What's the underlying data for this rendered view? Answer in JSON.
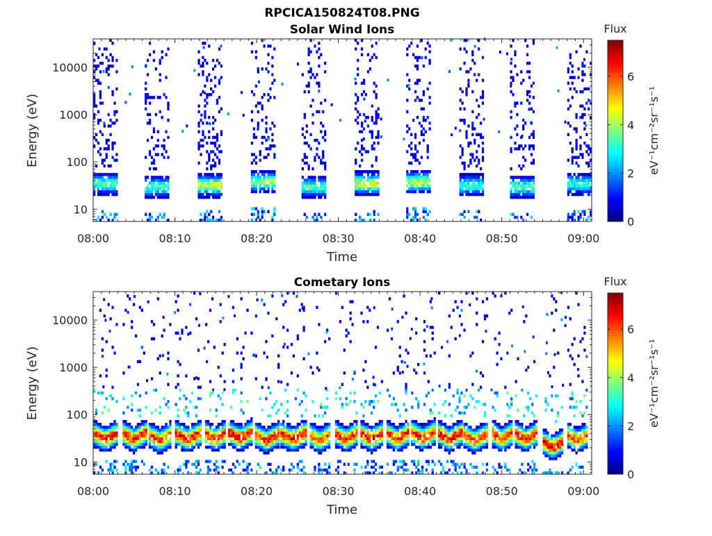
{
  "chart_data": {
    "type": "heatmap",
    "suptitle": "RPCICA150824T08.PNG",
    "colorbar": {
      "title": "Flux",
      "label": "eV⁻¹cm⁻²sr⁻¹s⁻¹",
      "range": [
        0,
        7.5
      ],
      "ticks": [
        "0",
        "2",
        "4",
        "6"
      ],
      "tick_values": [
        0,
        2,
        4,
        6
      ],
      "colormap": "jet"
    },
    "x_ticks": [
      "08:00",
      "08:10",
      "08:20",
      "08:30",
      "08:40",
      "08:50",
      "09:00"
    ],
    "y_ticks": [
      "10",
      "100",
      "1000",
      "10000"
    ],
    "y_tick_values": [
      10,
      100,
      1000,
      10000
    ],
    "yscale": "log",
    "ylim": [
      5.5,
      40000
    ],
    "xlim_minutes": [
      0,
      61
    ],
    "panels": [
      {
        "title": "Solar Wind Ions",
        "xlabel": "Time",
        "ylabel": "Energy (eV)",
        "bursts": [
          {
            "start": 0.0,
            "end": 3.0,
            "peak_energy": 35,
            "peak_flux": 3.6
          },
          {
            "start": 6.3,
            "end": 9.3,
            "peak_energy": 30,
            "peak_flux": 3.6
          },
          {
            "start": 12.8,
            "end": 15.8,
            "peak_energy": 32,
            "peak_flux": 4.6
          },
          {
            "start": 19.3,
            "end": 22.3,
            "peak_energy": 38,
            "peak_flux": 4.2
          },
          {
            "start": 25.5,
            "end": 28.5,
            "peak_energy": 30,
            "peak_flux": 3.6
          },
          {
            "start": 32.0,
            "end": 35.0,
            "peak_energy": 35,
            "peak_flux": 4.8
          },
          {
            "start": 38.3,
            "end": 41.3,
            "peak_energy": 38,
            "peak_flux": 4.6
          },
          {
            "start": 44.8,
            "end": 47.8,
            "peak_energy": 32,
            "peak_flux": 3.4
          },
          {
            "start": 51.0,
            "end": 54.0,
            "peak_energy": 30,
            "peak_flux": 3.6
          },
          {
            "start": 58.0,
            "end": 61.0,
            "peak_energy": 35,
            "peak_flux": 3.4
          }
        ]
      },
      {
        "title": "Cometary Ions",
        "xlabel": "Time",
        "ylabel": "Energy (eV)",
        "bursts": [
          {
            "start": 0.0,
            "end": 3.0,
            "peak_energy": 30,
            "peak_flux": 6.8
          },
          {
            "start": 3.6,
            "end": 6.4,
            "peak_energy": 30,
            "peak_flux": 6.9
          },
          {
            "start": 6.8,
            "end": 9.5,
            "peak_energy": 28,
            "peak_flux": 6.6
          },
          {
            "start": 10.0,
            "end": 13.2,
            "peak_energy": 30,
            "peak_flux": 7.0
          },
          {
            "start": 13.7,
            "end": 16.2,
            "peak_energy": 30,
            "peak_flux": 6.8
          },
          {
            "start": 16.5,
            "end": 19.5,
            "peak_energy": 32,
            "peak_flux": 7.2
          },
          {
            "start": 19.8,
            "end": 22.6,
            "peak_energy": 28,
            "peak_flux": 6.8
          },
          {
            "start": 22.9,
            "end": 26.0,
            "peak_energy": 30,
            "peak_flux": 7.0
          },
          {
            "start": 26.5,
            "end": 29.0,
            "peak_energy": 28,
            "peak_flux": 6.4
          },
          {
            "start": 29.6,
            "end": 32.3,
            "peak_energy": 30,
            "peak_flux": 6.8
          },
          {
            "start": 32.7,
            "end": 35.4,
            "peak_energy": 30,
            "peak_flux": 7.2
          },
          {
            "start": 35.9,
            "end": 38.5,
            "peak_energy": 30,
            "peak_flux": 6.9
          },
          {
            "start": 38.9,
            "end": 41.8,
            "peak_energy": 32,
            "peak_flux": 6.9
          },
          {
            "start": 42.2,
            "end": 45.0,
            "peak_energy": 30,
            "peak_flux": 7.0
          },
          {
            "start": 45.3,
            "end": 48.1,
            "peak_energy": 28,
            "peak_flux": 6.5
          },
          {
            "start": 48.8,
            "end": 51.2,
            "peak_energy": 30,
            "peak_flux": 6.8
          },
          {
            "start": 51.6,
            "end": 54.3,
            "peak_energy": 30,
            "peak_flux": 6.9
          },
          {
            "start": 55.0,
            "end": 57.5,
            "peak_energy": 20,
            "peak_flux": 7.2
          },
          {
            "start": 58.0,
            "end": 60.5,
            "peak_energy": 28,
            "peak_flux": 6.4
          }
        ]
      }
    ]
  }
}
